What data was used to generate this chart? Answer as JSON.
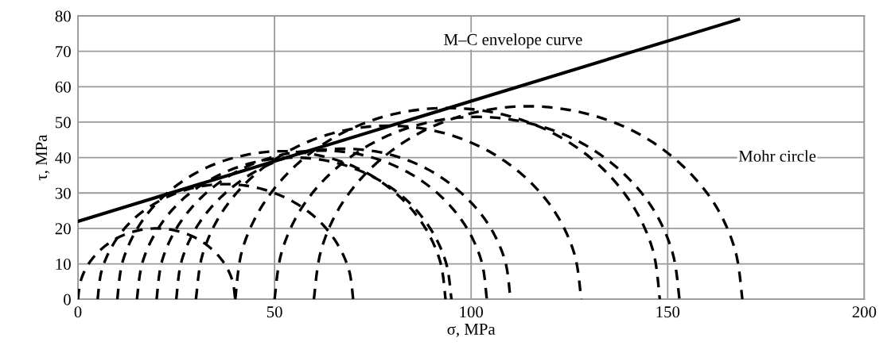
{
  "chart_data": {
    "type": "line",
    "xlabel": "σ, MPa",
    "ylabel": "τ, MPa",
    "xlim": [
      0,
      200
    ],
    "xticks": [
      0,
      50,
      100,
      150,
      200
    ],
    "ylim": [
      0,
      80
    ],
    "yticks": [
      0,
      10,
      20,
      30,
      40,
      50,
      60,
      70,
      80
    ],
    "grid": true,
    "legend": false,
    "marker": "none",
    "annotations": [
      "M–C envelope curve",
      {
        "text": "Mohr circle",
        "x": 150,
        "y": 40
      }
    ],
    "series": [
      {
        "color": "#000000",
        "line_style": "solid",
        "x": [
          0,
          168
        ],
        "values": [
          22,
          79
        ]
      },
      {
        "color": "#000000",
        "line_style": "dashed",
        "x": [
          0,
          0.7,
          2.7,
          5.9,
          10,
          14.8,
          20,
          25.2,
          30,
          34.1,
          37.3,
          39.3,
          40
        ],
        "values": [
          0,
          5.2,
          10,
          14.1,
          17.3,
          19.3,
          20,
          19.3,
          17.3,
          14.1,
          10,
          5.2,
          0
        ]
      },
      {
        "color": "#000000",
        "line_style": "dashed",
        "x": [
          5,
          6.1,
          9.4,
          14.5,
          21.3,
          29.1,
          37.5,
          45.9,
          53.8,
          60.5,
          65.6,
          68.9,
          70
        ],
        "values": [
          0,
          8.4,
          16.3,
          23,
          28.1,
          31.4,
          32.5,
          31.4,
          28.1,
          23,
          16.3,
          8.4,
          0
        ]
      },
      {
        "color": "#000000",
        "line_style": "dashed",
        "x": [
          10,
          11.4,
          15.6,
          22.2,
          30.9,
          40.9,
          51.8,
          62.6,
          72.6,
          81.3,
          87.9,
          92.1,
          93.5
        ],
        "values": [
          0,
          10.8,
          20.9,
          29.5,
          36.2,
          40.3,
          41.8,
          40.3,
          36.2,
          29.5,
          20.9,
          10.8,
          0
        ]
      },
      {
        "color": "#000000",
        "line_style": "dashed",
        "x": [
          15,
          16.4,
          20.4,
          26.7,
          35,
          44.6,
          55,
          65.4,
          75,
          83.3,
          89.6,
          93.6,
          95
        ],
        "values": [
          0,
          10.4,
          20,
          28.3,
          34.6,
          38.6,
          40,
          38.6,
          34.6,
          28.3,
          20,
          10.4,
          0
        ]
      },
      {
        "color": "#000000",
        "line_style": "dashed",
        "x": [
          20,
          21.4,
          25.6,
          32.3,
          41,
          51.1,
          62,
          72.9,
          83,
          91.7,
          98.4,
          102.6,
          104
        ],
        "values": [
          0,
          10.9,
          21,
          29.7,
          36.4,
          40.6,
          42,
          40.6,
          36.4,
          29.7,
          21,
          10.9,
          0
        ]
      },
      {
        "color": "#000000",
        "line_style": "dashed",
        "x": [
          25,
          26.4,
          30.7,
          37.5,
          46.3,
          56.5,
          67.5,
          78.5,
          88.8,
          97.5,
          104.3,
          108.6,
          110
        ],
        "values": [
          0,
          11,
          21.3,
          30,
          36.8,
          41.1,
          42.5,
          41.1,
          36.8,
          30,
          21.3,
          11,
          0
        ]
      },
      {
        "color": "#000000",
        "line_style": "dashed",
        "x": [
          30,
          31.7,
          36.6,
          44.4,
          54.5,
          66.3,
          79,
          91.7,
          103.5,
          113.6,
          121.4,
          126.3,
          128
        ],
        "values": [
          0,
          12.7,
          24.5,
          34.6,
          42.4,
          47.3,
          49,
          47.3,
          42.4,
          34.6,
          24.5,
          12.7,
          0
        ]
      },
      {
        "color": "#000000",
        "line_style": "dashed",
        "x": [
          40,
          41.8,
          47.2,
          55.8,
          67,
          80,
          94,
          108,
          121,
          132.2,
          140.8,
          146.2,
          148
        ],
        "values": [
          0,
          14,
          27,
          38.2,
          46.8,
          52.2,
          54,
          52.2,
          46.8,
          38.2,
          27,
          14,
          0
        ]
      },
      {
        "color": "#000000",
        "line_style": "dashed",
        "x": [
          50,
          51.8,
          56.9,
          65.1,
          75.8,
          88.2,
          101.5,
          114.8,
          127.3,
          137.9,
          146.1,
          151.2,
          153
        ],
        "values": [
          0,
          13.3,
          25.8,
          36.4,
          44.6,
          49.7,
          51.5,
          49.7,
          44.6,
          36.4,
          25.8,
          13.3,
          0
        ]
      },
      {
        "color": "#000000",
        "line_style": "dashed",
        "x": [
          60,
          61.9,
          67.3,
          76,
          87.3,
          100.4,
          114.5,
          128.6,
          141.8,
          153,
          161.7,
          167.1,
          169
        ],
        "values": [
          0,
          14.1,
          27.3,
          38.5,
          47.2,
          52.6,
          54.5,
          52.6,
          47.2,
          38.5,
          27.3,
          14.1,
          0
        ]
      }
    ]
  }
}
